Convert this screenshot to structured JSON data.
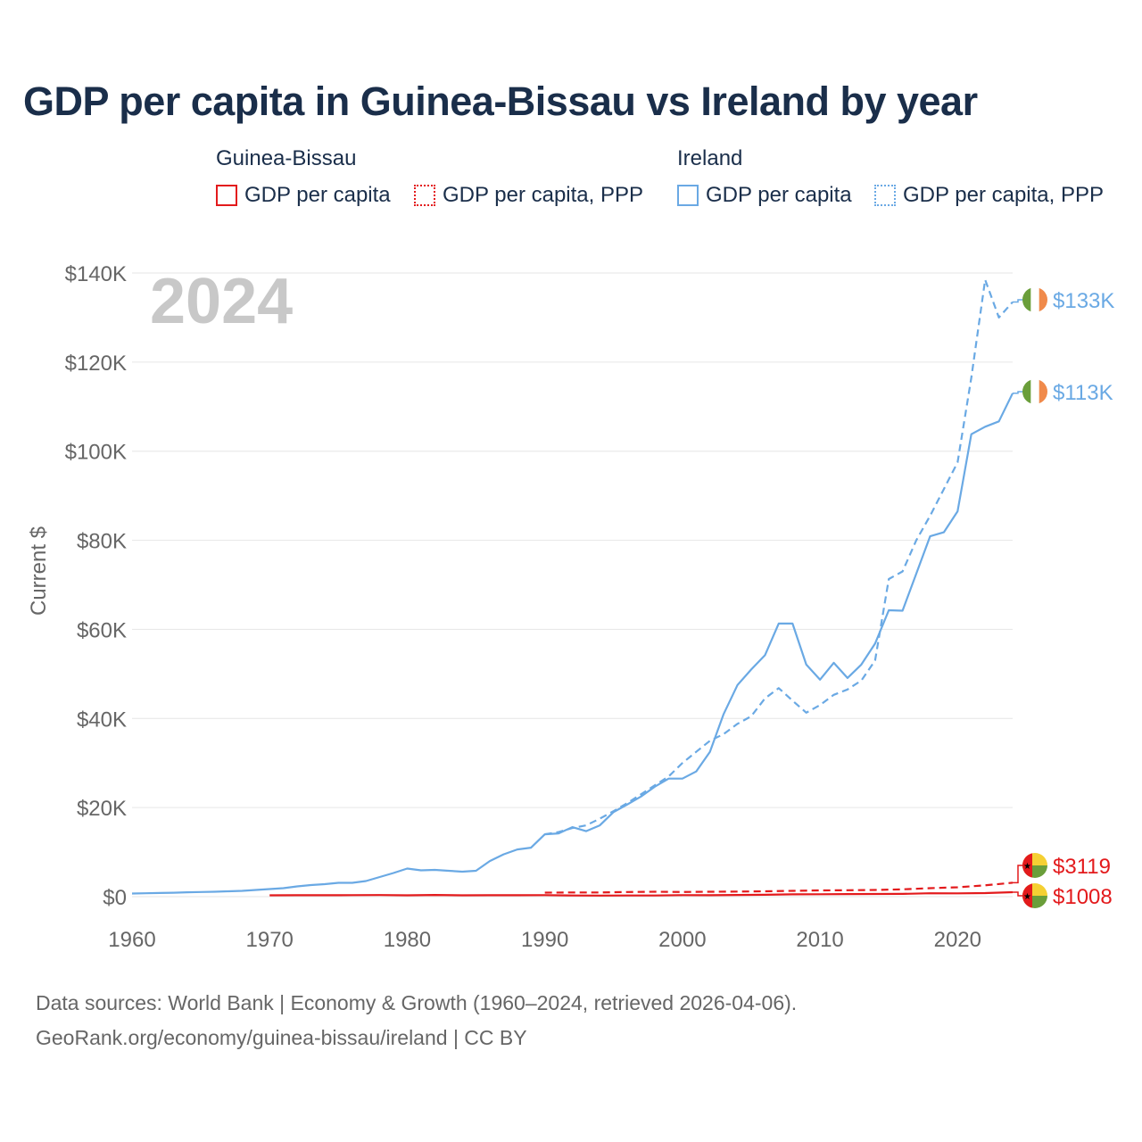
{
  "chart_data": {
    "type": "line",
    "title": "GDP per capita in Guinea-Bissau vs Ireland by year",
    "ylabel": "Current $",
    "xlabel": "",
    "xlim": [
      1960,
      2024
    ],
    "ylim": [
      0,
      140000
    ],
    "x_ticks": [
      1960,
      1970,
      1980,
      1990,
      2000,
      2010,
      2020
    ],
    "x_tick_labels": [
      "1960",
      "1970",
      "1980",
      "1990",
      "2000",
      "2010",
      "2020"
    ],
    "y_ticks": [
      0,
      20000,
      40000,
      60000,
      80000,
      100000,
      120000,
      140000
    ],
    "y_tick_labels": [
      "$0",
      "$20K",
      "$40K",
      "$60K",
      "$80K",
      "$100K",
      "$120K",
      "$140K"
    ],
    "year_badge": "2024",
    "legend_groups": [
      {
        "country": "Guinea-Bissau",
        "entries": [
          "GDP per capita",
          "GDP per capita, PPP"
        ],
        "color": "#e31a1c"
      },
      {
        "country": "Ireland",
        "entries": [
          "GDP per capita",
          "GDP per capita, PPP"
        ],
        "color": "#6aa9e4"
      }
    ],
    "series": [
      {
        "name": "Ireland GDP per capita",
        "country": "Ireland",
        "style": "solid",
        "color": "#6aa9e4",
        "end_label": "$113K",
        "x": [
          1960,
          1961,
          1962,
          1963,
          1964,
          1965,
          1966,
          1967,
          1968,
          1969,
          1970,
          1971,
          1972,
          1973,
          1974,
          1975,
          1976,
          1977,
          1978,
          1979,
          1980,
          1981,
          1982,
          1983,
          1984,
          1985,
          1986,
          1987,
          1988,
          1989,
          1990,
          1991,
          1992,
          1993,
          1994,
          1995,
          1996,
          1997,
          1998,
          1999,
          2000,
          2001,
          2002,
          2003,
          2004,
          2005,
          2006,
          2007,
          2008,
          2009,
          2010,
          2011,
          2012,
          2013,
          2014,
          2015,
          2016,
          2017,
          2018,
          2019,
          2020,
          2021,
          2022,
          2023,
          2024
        ],
        "y": [
          700,
          760,
          820,
          880,
          980,
          1050,
          1100,
          1200,
          1300,
          1500,
          1700,
          1900,
          2300,
          2600,
          2800,
          3100,
          3100,
          3500,
          4400,
          5300,
          6300,
          5900,
          6000,
          5800,
          5600,
          5800,
          8000,
          9500,
          10600,
          11000,
          14000,
          14200,
          15600,
          14700,
          16000,
          19000,
          20700,
          22500,
          24700,
          26500,
          26500,
          28100,
          32500,
          41000,
          47500,
          51000,
          54200,
          61300,
          61300,
          52100,
          48700,
          52500,
          49100,
          52100,
          56800,
          64300,
          64200,
          72500,
          80900,
          81800,
          86500,
          103800,
          105500,
          106700,
          113000
        ]
      },
      {
        "name": "Ireland GDP per capita, PPP",
        "country": "Ireland",
        "style": "dashed",
        "color": "#6aa9e4",
        "end_label": "$133K",
        "x": [
          1990,
          1991,
          1992,
          1993,
          1994,
          1995,
          1996,
          1997,
          1998,
          1999,
          2000,
          2001,
          2002,
          2003,
          2004,
          2005,
          2006,
          2007,
          2008,
          2009,
          2010,
          2011,
          2012,
          2013,
          2014,
          2015,
          2016,
          2017,
          2018,
          2019,
          2020,
          2021,
          2022,
          2023,
          2024
        ],
        "y": [
          14000,
          14500,
          15400,
          16000,
          17500,
          19200,
          21000,
          23000,
          25000,
          27000,
          30000,
          32500,
          35000,
          36500,
          38800,
          40500,
          44500,
          46800,
          44000,
          41300,
          43000,
          45300,
          46500,
          48500,
          53000,
          71300,
          73000,
          80000,
          85500,
          91500,
          97500,
          116500,
          138500,
          130000,
          133500
        ]
      },
      {
        "name": "Guinea-Bissau GDP per capita",
        "country": "Guinea-Bissau",
        "style": "solid",
        "color": "#e31a1c",
        "end_label": "$1008",
        "x": [
          1970,
          1972,
          1974,
          1976,
          1978,
          1980,
          1982,
          1984,
          1986,
          1988,
          1990,
          1992,
          1994,
          1996,
          1998,
          2000,
          2002,
          2004,
          2006,
          2008,
          2010,
          2012,
          2014,
          2016,
          2018,
          2020,
          2022,
          2024
        ],
        "y": [
          300,
          320,
          330,
          350,
          360,
          300,
          380,
          300,
          320,
          330,
          350,
          260,
          250,
          270,
          260,
          340,
          330,
          380,
          420,
          520,
          540,
          580,
          600,
          620,
          760,
          740,
          810,
          1008
        ]
      },
      {
        "name": "Guinea-Bissau GDP per capita, PPP",
        "country": "Guinea-Bissau",
        "style": "dashed",
        "color": "#e31a1c",
        "end_label": "$3119",
        "x": [
          1990,
          1992,
          1994,
          1996,
          1998,
          2000,
          2002,
          2004,
          2006,
          2008,
          2010,
          2012,
          2014,
          2016,
          2018,
          2020,
          2022,
          2024
        ],
        "y": [
          900,
          950,
          950,
          1050,
          1100,
          1050,
          1100,
          1150,
          1200,
          1300,
          1400,
          1450,
          1500,
          1650,
          1900,
          2100,
          2550,
          3119
        ]
      }
    ]
  },
  "footer": {
    "sources": "Data sources: World Bank | Economy & Growth (1960–2024, retrieved 2026-04-06).",
    "site": "GeoRank.org/economy/guinea-bissau/ireland | CC BY"
  }
}
